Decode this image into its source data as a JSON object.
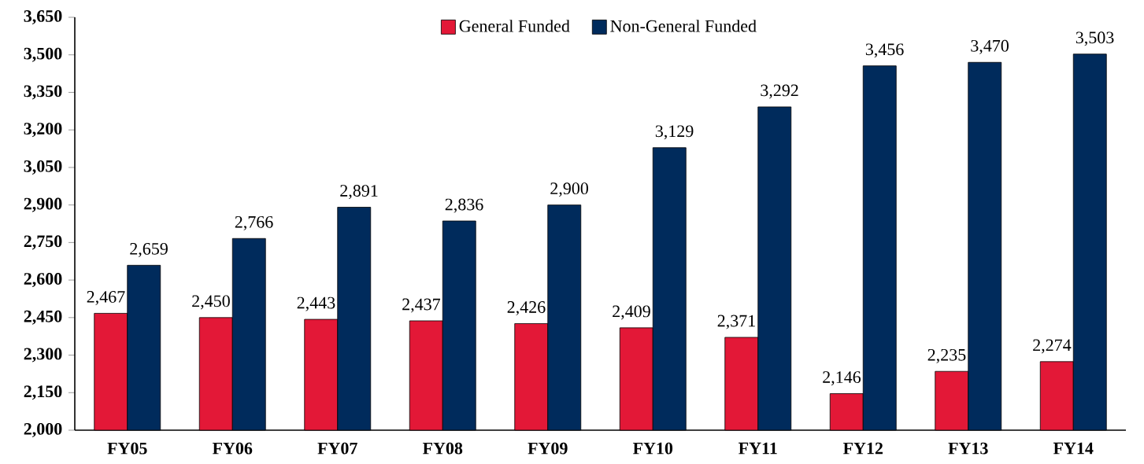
{
  "chart_data": {
    "type": "bar",
    "categories": [
      "FY05",
      "FY06",
      "FY07",
      "FY08",
      "FY09",
      "FY10",
      "FY11",
      "FY12",
      "FY13",
      "FY14"
    ],
    "series": [
      {
        "name": "General Funded",
        "color": "#e31837",
        "values": [
          2467,
          2450,
          2443,
          2437,
          2426,
          2409,
          2371,
          2146,
          2235,
          2274
        ],
        "value_labels": [
          "2,467",
          "2,450",
          "2,443",
          "2,437",
          "2,426",
          "2,409",
          "2,371",
          "2,146",
          "2,235",
          "2,274"
        ]
      },
      {
        "name": "Non-General Funded",
        "color": "#002b5c",
        "values": [
          2659,
          2766,
          2891,
          2836,
          2900,
          3129,
          3292,
          3456,
          3470,
          3503
        ],
        "value_labels": [
          "2,659",
          "2,766",
          "2,891",
          "2,836",
          "2,900",
          "3,129",
          "3,292",
          "3,456",
          "3,470",
          "3,503"
        ]
      }
    ],
    "ylim": [
      2000,
      3650
    ],
    "yticks": [
      {
        "value": 2000,
        "label": "2,000"
      },
      {
        "value": 2150,
        "label": "2,150"
      },
      {
        "value": 2300,
        "label": "2,300"
      },
      {
        "value": 2450,
        "label": "2,450"
      },
      {
        "value": 2600,
        "label": "2,600"
      },
      {
        "value": 2750,
        "label": "2,750"
      },
      {
        "value": 2900,
        "label": "2,900"
      },
      {
        "value": 3050,
        "label": "3,050"
      },
      {
        "value": 3200,
        "label": "3,200"
      },
      {
        "value": 3350,
        "label": "3,350"
      },
      {
        "value": 3500,
        "label": "3,500"
      },
      {
        "value": 3650,
        "label": "3,650"
      }
    ],
    "legend": "top"
  }
}
